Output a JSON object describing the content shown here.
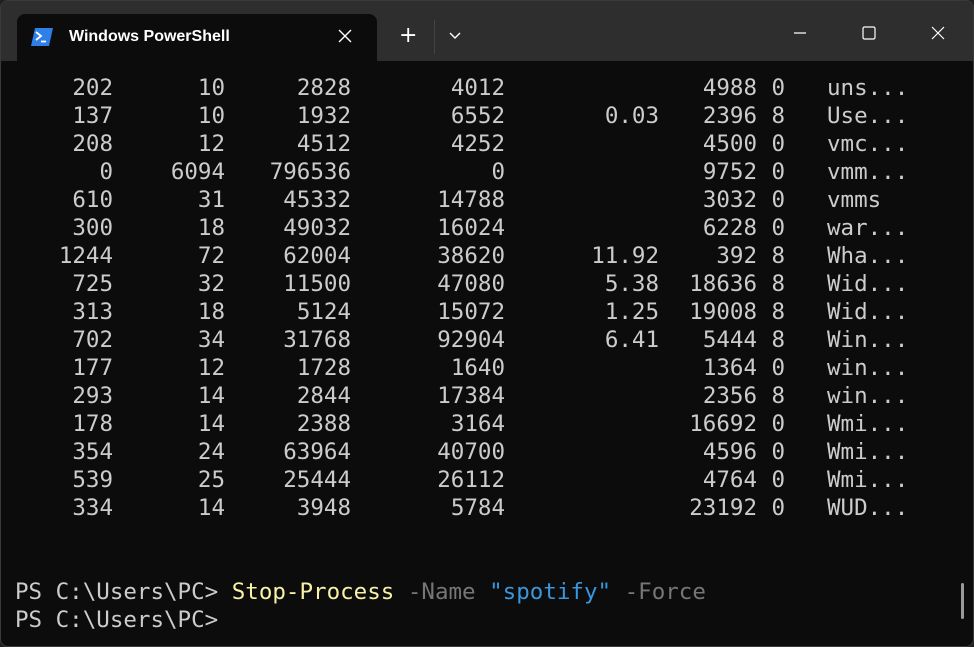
{
  "window": {
    "tab_title": "Windows PowerShell",
    "tab_icon": "powershell-icon",
    "new_tab_label": "+",
    "colors": {
      "background": "#0c0c0c",
      "foreground": "#cccccc",
      "command": "#f9f1a5",
      "string": "#3a96dd",
      "parameter": "#767676"
    }
  },
  "terminal": {
    "rows": [
      [
        "202",
        "10",
        "2828",
        "4012",
        "",
        "4988",
        "0",
        "uns..."
      ],
      [
        "137",
        "10",
        "1932",
        "6552",
        "0.03",
        "2396",
        "8",
        "Use..."
      ],
      [
        "208",
        "12",
        "4512",
        "4252",
        "",
        "4500",
        "0",
        "vmc..."
      ],
      [
        "0",
        "6094",
        "796536",
        "0",
        "",
        "9752",
        "0",
        "vmm..."
      ],
      [
        "610",
        "31",
        "45332",
        "14788",
        "",
        "3032",
        "0",
        "vmms"
      ],
      [
        "300",
        "18",
        "49032",
        "16024",
        "",
        "6228",
        "0",
        "war..."
      ],
      [
        "1244",
        "72",
        "62004",
        "38620",
        "11.92",
        "392",
        "8",
        "Wha..."
      ],
      [
        "725",
        "32",
        "11500",
        "47080",
        "5.38",
        "18636",
        "8",
        "Wid..."
      ],
      [
        "313",
        "18",
        "5124",
        "15072",
        "1.25",
        "19008",
        "8",
        "Wid..."
      ],
      [
        "702",
        "34",
        "31768",
        "92904",
        "6.41",
        "5444",
        "8",
        "Win..."
      ],
      [
        "177",
        "12",
        "1728",
        "1640",
        "",
        "1364",
        "0",
        "win..."
      ],
      [
        "293",
        "14",
        "2844",
        "17384",
        "",
        "2356",
        "8",
        "win..."
      ],
      [
        "178",
        "14",
        "2388",
        "3164",
        "",
        "16692",
        "0",
        "Wmi..."
      ],
      [
        "354",
        "24",
        "63964",
        "40700",
        "",
        "4596",
        "0",
        "Wmi..."
      ],
      [
        "539",
        "25",
        "25444",
        "26112",
        "",
        "4764",
        "0",
        "Wmi..."
      ],
      [
        "334",
        "14",
        "3948",
        "5784",
        "",
        "23192",
        "0",
        "WUD..."
      ]
    ],
    "prompt": "PS C:\\Users\\PC> ",
    "command": "Stop-Process",
    "param_name": " -Name ",
    "param_value": "\"spotify\"",
    "param_force": " -Force",
    "prompt2": "PS C:\\Users\\PC>"
  }
}
